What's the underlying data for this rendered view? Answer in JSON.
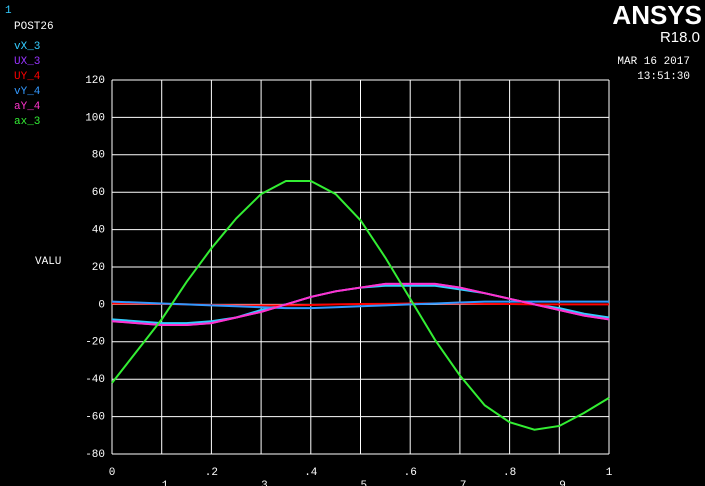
{
  "chart_data": {
    "type": "line",
    "window_number": "1",
    "program": "POST26",
    "brand": "ANSYS",
    "version": "R18.0",
    "date": "MAR 16 2017",
    "time": "13:51:30",
    "y_label": "VALU",
    "x": [
      0,
      0.05,
      0.1,
      0.15,
      0.2,
      0.25,
      0.3,
      0.35,
      0.4,
      0.45,
      0.5,
      0.55,
      0.6,
      0.65,
      0.7,
      0.75,
      0.8,
      0.85,
      0.9,
      0.95,
      1
    ],
    "xlim": [
      0,
      1
    ],
    "xticks": [
      0,
      {
        "value": 0.1,
        "label": ".1"
      },
      {
        "value": 0.2,
        "label": ".2"
      },
      {
        "value": 0.3,
        "label": ".3"
      },
      {
        "value": 0.4,
        "label": ".4"
      },
      {
        "value": 0.5,
        "label": ".5"
      },
      {
        "value": 0.6,
        "label": ".6"
      },
      {
        "value": 0.7,
        "label": ".7"
      },
      {
        "value": 0.8,
        "label": ".8"
      },
      {
        "value": 0.9,
        "label": ".9"
      },
      1
    ],
    "ylim": [
      -80,
      120
    ],
    "yticks": [
      -80,
      -60,
      -40,
      -20,
      0,
      20,
      40,
      60,
      80,
      100,
      120
    ],
    "grid": true,
    "series": [
      {
        "name": "vX_3",
        "color": "#33ccff",
        "values": [
          -8,
          -9,
          -10,
          -10,
          -9,
          -7,
          -3,
          0,
          4,
          7,
          9,
          10,
          10,
          10,
          8,
          6,
          3,
          0,
          -2,
          -5,
          -7
        ]
      },
      {
        "name": "UX_3",
        "color": "#9933ff",
        "values": [
          -9,
          -10,
          -11,
          -11,
          -10,
          -7,
          -4,
          0,
          4,
          7,
          9,
          11,
          11,
          11,
          9,
          6,
          3,
          0,
          -3,
          -6,
          -8
        ]
      },
      {
        "name": "UY_4",
        "color": "#ff0000",
        "values": [
          0.5,
          0.5,
          0.3,
          0,
          -0.3,
          -0.5,
          -0.5,
          -0.5,
          -0.3,
          0,
          0.2,
          0.3,
          0.5,
          0.5,
          0.5,
          0.3,
          0.2,
          0,
          0,
          0,
          0
        ]
      },
      {
        "name": "vY_4",
        "color": "#3399ff",
        "values": [
          1.5,
          1,
          0.5,
          0,
          -0.5,
          -1,
          -1.5,
          -2,
          -2,
          -1.5,
          -1,
          -0.5,
          0,
          0.5,
          1,
          1.5,
          1.5,
          1.5,
          1.5,
          1.5,
          1.5
        ]
      },
      {
        "name": "aY_4",
        "color": "#ff33cc",
        "values": [
          -9,
          -10,
          -11,
          -11,
          -10,
          -7,
          -4,
          0,
          4,
          7,
          9,
          11,
          11,
          11,
          9,
          6,
          3,
          0,
          -3,
          -6,
          -8
        ]
      },
      {
        "name": "ax_3",
        "color": "#33ee33",
        "values": [
          -42,
          -25,
          -8,
          12,
          30,
          46,
          59,
          66,
          66,
          59,
          45,
          25,
          3,
          -19,
          -38,
          -54,
          -63,
          -67,
          -65,
          -58,
          -50
        ]
      }
    ]
  }
}
